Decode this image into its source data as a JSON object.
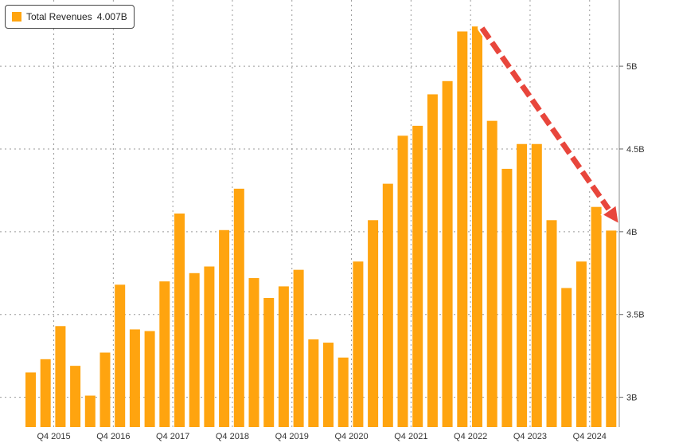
{
  "chart_data": {
    "type": "bar",
    "legend": {
      "label": "Total Revenues",
      "last_value": "4.007B"
    },
    "bar_color": "#ffa40f",
    "arrow_color": "#e8463c",
    "grid": true,
    "legend_position": "top-left",
    "y_axis_side": "right",
    "ylim": [
      2.82,
      5.4
    ],
    "yticks": [
      {
        "value": 3.0,
        "label": "3B"
      },
      {
        "value": 3.5,
        "label": "3.5B"
      },
      {
        "value": 4.0,
        "label": "4B"
      },
      {
        "value": 4.5,
        "label": "4.5B"
      },
      {
        "value": 5.0,
        "label": "5B"
      }
    ],
    "x_tick_labels": [
      {
        "bar_index": 2,
        "label": "Q4 2015"
      },
      {
        "bar_index": 6,
        "label": "Q4 2016"
      },
      {
        "bar_index": 10,
        "label": "Q4 2017"
      },
      {
        "bar_index": 14,
        "label": "Q4 2018"
      },
      {
        "bar_index": 18,
        "label": "Q4 2019"
      },
      {
        "bar_index": 22,
        "label": "Q4 2020"
      },
      {
        "bar_index": 26,
        "label": "Q4 2021"
      },
      {
        "bar_index": 30,
        "label": "Q4 2022"
      },
      {
        "bar_index": 34,
        "label": "Q4 2023"
      },
      {
        "bar_index": 38,
        "label": "Q4 2024"
      }
    ],
    "values": [
      3.15,
      3.23,
      3.43,
      3.19,
      3.01,
      3.27,
      3.68,
      3.41,
      3.4,
      3.7,
      4.11,
      3.75,
      3.79,
      4.01,
      4.26,
      3.72,
      3.6,
      3.67,
      3.77,
      3.35,
      3.33,
      3.24,
      3.82,
      4.07,
      4.29,
      4.58,
      4.64,
      4.83,
      4.91,
      5.21,
      5.24,
      4.67,
      4.38,
      4.53,
      4.53,
      4.07,
      3.66,
      3.82,
      4.15,
      4.007
    ],
    "annotation": {
      "type": "arrow",
      "from_bar": 30,
      "to_bar": 39,
      "meaning": "declining trend"
    }
  }
}
